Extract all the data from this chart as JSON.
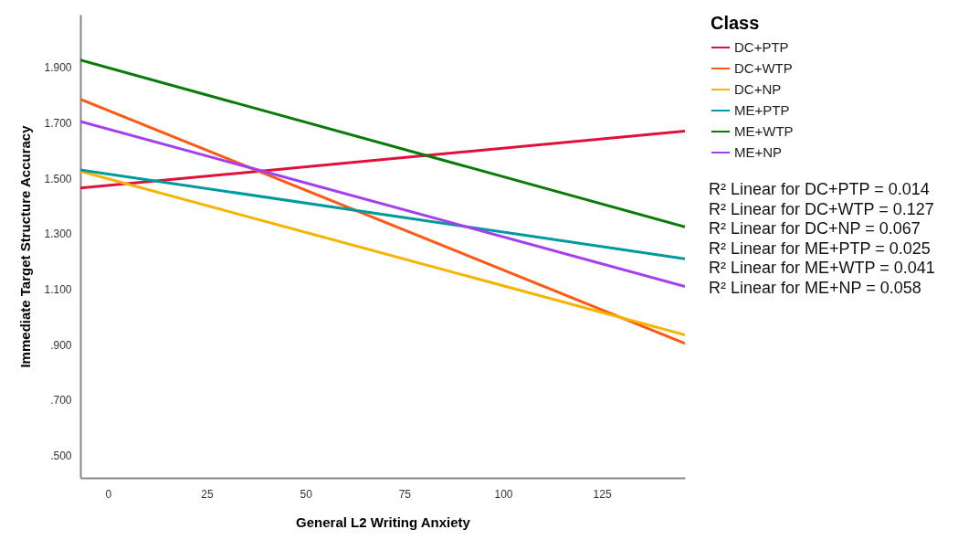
{
  "chart_data": {
    "type": "line",
    "xlabel": "General L2 Writing Anxiety",
    "ylabel": "Immediate Target Structure Accuracy",
    "legend_title": "Class",
    "legend": "right",
    "grid": false,
    "x": [
      -7,
      146
    ],
    "xlim": [
      -7,
      146
    ],
    "xticks": [
      0,
      25,
      50,
      75,
      100,
      125
    ],
    "ylim": [
      0.42,
      2.09
    ],
    "yticks": [
      {
        "value": 0.5,
        "label": ".500"
      },
      {
        "value": 0.7,
        "label": ".700"
      },
      {
        "value": 0.9,
        "label": ".900"
      },
      {
        "value": 1.1,
        "label": "1.100"
      },
      {
        "value": 1.3,
        "label": "1.300"
      },
      {
        "value": 1.5,
        "label": "1.500"
      },
      {
        "value": 1.7,
        "label": "1.700"
      },
      {
        "value": 1.9,
        "label": "1.900"
      }
    ],
    "series": [
      {
        "name": "DC+PTP",
        "color": "#e0103a",
        "values": [
          1.465,
          1.67
        ]
      },
      {
        "name": "DC+WTP",
        "color": "#ff5a14",
        "values": [
          1.785,
          0.905
        ]
      },
      {
        "name": "DC+NP",
        "color": "#f5b400",
        "values": [
          1.525,
          0.935
        ]
      },
      {
        "name": "ME+PTP",
        "color": "#00999e",
        "values": [
          1.53,
          1.21
        ]
      },
      {
        "name": "ME+WTP",
        "color": "#0b7a0b",
        "values": [
          1.926,
          1.325
        ]
      },
      {
        "name": "ME+NP",
        "color": "#a33ff0",
        "values": [
          1.705,
          1.11
        ]
      }
    ],
    "annotations": [
      "R² Linear for DC+PTP = 0.014",
      "R² Linear for DC+WTP = 0.127",
      "R² Linear for DC+NP = 0.067",
      "R² Linear for ME+PTP = 0.025",
      "R² Linear for ME+WTP = 0.041",
      "R² Linear for ME+NP = 0.058"
    ]
  }
}
